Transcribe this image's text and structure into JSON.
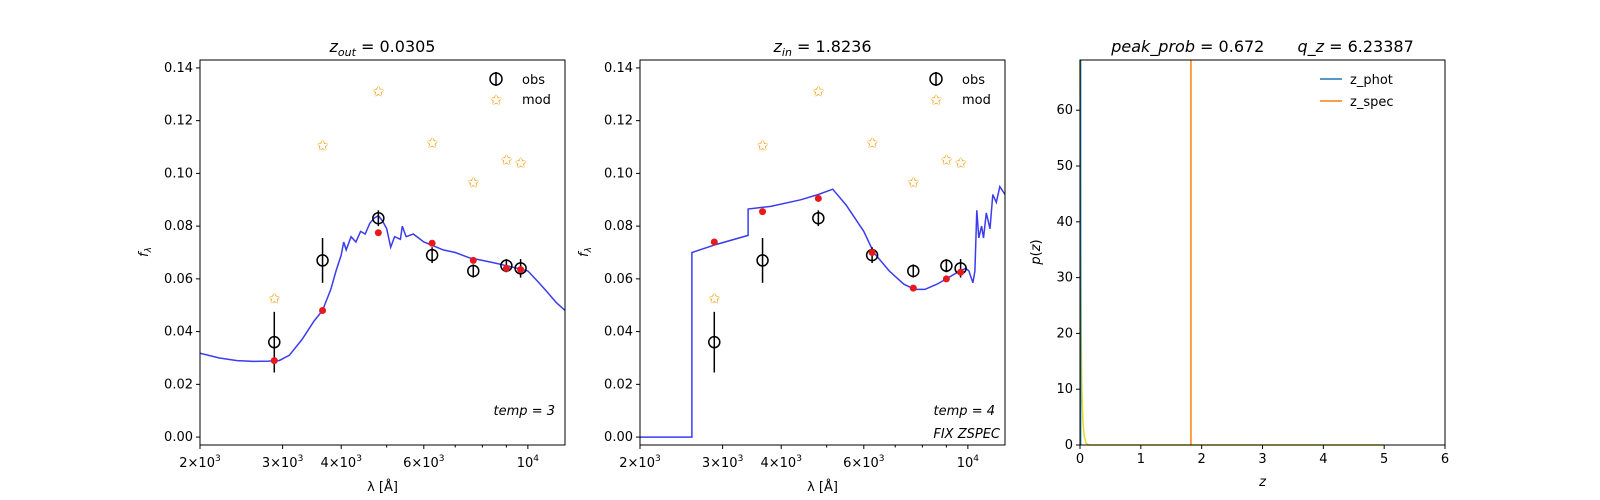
{
  "colors": {
    "model_curve": "#3b3bf0",
    "obs": "#000000",
    "mod_star": "#f5a623",
    "model_points": "#e8191d",
    "z_phot": "#1f77b4",
    "z_spec": "#ff7f0e",
    "pz_curve": "#e0e020"
  },
  "chart_data": [
    {
      "type": "scatter",
      "title": "$z_{out} = 0.0305$",
      "title_parts": {
        "sym": "z",
        "sub": "out",
        "rest": " = 0.0305"
      },
      "xlabel": "λ [Å]",
      "ylabel": "f_λ",
      "xscale": "log",
      "xlim": [
        2000,
        12000
      ],
      "ylim": [
        -0.003,
        0.143
      ],
      "xticks_major": [
        {
          "value": 2000,
          "mant": "2×10",
          "exp": "3"
        },
        {
          "value": 3000,
          "mant": "3×10",
          "exp": "3"
        },
        {
          "value": 4000,
          "mant": "4×10",
          "exp": "3"
        },
        {
          "value": 6000,
          "mant": "6×10",
          "exp": "3"
        },
        {
          "value": 10000,
          "mant": "10",
          "exp": "4"
        }
      ],
      "xticks_minor": [
        5000,
        7000,
        8000,
        9000
      ],
      "yticks": [
        "0.00",
        "0.02",
        "0.04",
        "0.06",
        "0.08",
        "0.10",
        "0.12",
        "0.14"
      ],
      "legend": {
        "position": "upper-right",
        "entries": [
          "obs",
          "mod"
        ]
      },
      "annotations": [
        {
          "text": "temp = 3"
        }
      ],
      "obs": [
        {
          "x": 2880,
          "y": 0.036,
          "err": 0.0115
        },
        {
          "x": 3650,
          "y": 0.067,
          "err": 0.0085
        },
        {
          "x": 4800,
          "y": 0.083,
          "err": 0.003
        },
        {
          "x": 6250,
          "y": 0.069,
          "err": 0.003
        },
        {
          "x": 7650,
          "y": 0.063,
          "err": 0.0025
        },
        {
          "x": 9000,
          "y": 0.065,
          "err": 0.0025
        },
        {
          "x": 9650,
          "y": 0.064,
          "err": 0.0035
        }
      ],
      "mod": [
        {
          "x": 2880,
          "y": 0.0525
        },
        {
          "x": 3650,
          "y": 0.1105
        },
        {
          "x": 4800,
          "y": 0.131
        },
        {
          "x": 6250,
          "y": 0.1115
        },
        {
          "x": 7650,
          "y": 0.0965
        },
        {
          "x": 9000,
          "y": 0.105
        },
        {
          "x": 9650,
          "y": 0.104
        }
      ],
      "model_points": [
        {
          "x": 2880,
          "y": 0.029
        },
        {
          "x": 3650,
          "y": 0.048
        },
        {
          "x": 4800,
          "y": 0.0775
        },
        {
          "x": 6250,
          "y": 0.0735
        },
        {
          "x": 7650,
          "y": 0.067
        },
        {
          "x": 9000,
          "y": 0.064
        },
        {
          "x": 9650,
          "y": 0.0635
        }
      ],
      "model_curve": [
        [
          2000,
          0.0318
        ],
        [
          2200,
          0.03
        ],
        [
          2400,
          0.029
        ],
        [
          2600,
          0.0287
        ],
        [
          2800,
          0.0288
        ],
        [
          2950,
          0.029
        ],
        [
          3100,
          0.031
        ],
        [
          3300,
          0.037
        ],
        [
          3500,
          0.044
        ],
        [
          3650,
          0.048
        ],
        [
          3800,
          0.056
        ],
        [
          3900,
          0.063
        ],
        [
          4000,
          0.069
        ],
        [
          4050,
          0.074
        ],
        [
          4100,
          0.071
        ],
        [
          4200,
          0.076
        ],
        [
          4300,
          0.074
        ],
        [
          4400,
          0.078
        ],
        [
          4500,
          0.077
        ],
        [
          4600,
          0.081
        ],
        [
          4700,
          0.083
        ],
        [
          4800,
          0.084
        ],
        [
          4900,
          0.082
        ],
        [
          5000,
          0.079
        ],
        [
          5100,
          0.072
        ],
        [
          5200,
          0.076
        ],
        [
          5350,
          0.075
        ],
        [
          5400,
          0.08
        ],
        [
          5500,
          0.076
        ],
        [
          5700,
          0.077
        ],
        [
          6000,
          0.074
        ],
        [
          6300,
          0.0725
        ],
        [
          6600,
          0.071
        ],
        [
          7000,
          0.07
        ],
        [
          7500,
          0.068
        ],
        [
          8000,
          0.067
        ],
        [
          8500,
          0.066
        ],
        [
          9000,
          0.065
        ],
        [
          9500,
          0.064
        ],
        [
          10000,
          0.063
        ],
        [
          10500,
          0.059
        ],
        [
          11000,
          0.055
        ],
        [
          11500,
          0.051
        ],
        [
          12000,
          0.048
        ]
      ]
    },
    {
      "type": "scatter",
      "title": "$z_{in} = 1.8236$",
      "title_parts": {
        "sym": "z",
        "sub": "in",
        "rest": " = 1.8236"
      },
      "xlabel": "λ [Å]",
      "ylabel": "f_λ",
      "xscale": "log",
      "xlim": [
        2000,
        12000
      ],
      "ylim": [
        -0.003,
        0.143
      ],
      "xticks_major": [
        {
          "value": 2000,
          "mant": "2×10",
          "exp": "3"
        },
        {
          "value": 3000,
          "mant": "3×10",
          "exp": "3"
        },
        {
          "value": 4000,
          "mant": "4×10",
          "exp": "3"
        },
        {
          "value": 6000,
          "mant": "6×10",
          "exp": "3"
        },
        {
          "value": 10000,
          "mant": "10",
          "exp": "4"
        }
      ],
      "xticks_minor": [
        5000,
        7000,
        8000,
        9000
      ],
      "yticks": [
        "0.00",
        "0.02",
        "0.04",
        "0.06",
        "0.08",
        "0.10",
        "0.12",
        "0.14"
      ],
      "legend": {
        "position": "upper-right",
        "entries": [
          "obs",
          "mod"
        ]
      },
      "annotations": [
        {
          "text": "temp = 4"
        },
        {
          "text": "FIX ZSPEC"
        }
      ],
      "obs": [
        {
          "x": 2880,
          "y": 0.036,
          "err": 0.0115
        },
        {
          "x": 3650,
          "y": 0.067,
          "err": 0.0085
        },
        {
          "x": 4800,
          "y": 0.083,
          "err": 0.003
        },
        {
          "x": 6250,
          "y": 0.069,
          "err": 0.003
        },
        {
          "x": 7650,
          "y": 0.063,
          "err": 0.0025
        },
        {
          "x": 9000,
          "y": 0.065,
          "err": 0.0025
        },
        {
          "x": 9650,
          "y": 0.064,
          "err": 0.0035
        }
      ],
      "mod": [
        {
          "x": 2880,
          "y": 0.0525
        },
        {
          "x": 3650,
          "y": 0.1105
        },
        {
          "x": 4800,
          "y": 0.131
        },
        {
          "x": 6250,
          "y": 0.1115
        },
        {
          "x": 7650,
          "y": 0.0965
        },
        {
          "x": 9000,
          "y": 0.105
        },
        {
          "x": 9650,
          "y": 0.104
        }
      ],
      "model_points": [
        {
          "x": 2880,
          "y": 0.074
        },
        {
          "x": 3650,
          "y": 0.0855
        },
        {
          "x": 4800,
          "y": 0.0905
        },
        {
          "x": 6250,
          "y": 0.07
        },
        {
          "x": 7650,
          "y": 0.0565
        },
        {
          "x": 9000,
          "y": 0.06
        },
        {
          "x": 9650,
          "y": 0.0625
        }
      ],
      "model_curve": [
        [
          2000,
          0.0
        ],
        [
          2580,
          0.0
        ],
        [
          2580,
          0.07
        ],
        [
          2900,
          0.073
        ],
        [
          3400,
          0.0765
        ],
        [
          3400,
          0.0865
        ],
        [
          3800,
          0.0875
        ],
        [
          4400,
          0.09
        ],
        [
          4800,
          0.092
        ],
        [
          5150,
          0.094
        ],
        [
          5500,
          0.088
        ],
        [
          6000,
          0.078
        ],
        [
          6300,
          0.07
        ],
        [
          6800,
          0.063
        ],
        [
          7300,
          0.058
        ],
        [
          7700,
          0.056
        ],
        [
          8100,
          0.056
        ],
        [
          8600,
          0.058
        ],
        [
          9000,
          0.06
        ],
        [
          9500,
          0.0625
        ],
        [
          9900,
          0.064
        ],
        [
          10050,
          0.063
        ],
        [
          10250,
          0.0585
        ],
        [
          10350,
          0.063
        ],
        [
          10450,
          0.086
        ],
        [
          10550,
          0.0755
        ],
        [
          10700,
          0.08
        ],
        [
          10800,
          0.0755
        ],
        [
          10950,
          0.085
        ],
        [
          11150,
          0.079
        ],
        [
          11300,
          0.092
        ],
        [
          11500,
          0.089
        ],
        [
          11700,
          0.095
        ],
        [
          12000,
          0.092
        ]
      ]
    },
    {
      "type": "line",
      "title": "peak_prob = 0.672      q_z = 6.23387",
      "title_parts": {
        "a_sym": "peak_prob",
        "a_rest": " = 0.672",
        "b_sym": "q_z",
        "b_rest": " = 6.23387"
      },
      "xlabel": "z",
      "ylabel": "p(z)",
      "xlim": [
        0,
        6
      ],
      "ylim": [
        0,
        69
      ],
      "xticks": [
        0,
        1,
        2,
        3,
        4,
        5,
        6
      ],
      "yticks": [
        0,
        10,
        20,
        30,
        40,
        50,
        60
      ],
      "legend": {
        "position": "upper-right",
        "entries": [
          "z_phot",
          "z_spec"
        ]
      },
      "series": [
        {
          "name": "z_phot",
          "x": [
            0.01,
            0.01
          ],
          "y": [
            0,
            69
          ]
        },
        {
          "name": "z_spec",
          "x": [
            1.8236,
            1.8236
          ],
          "y": [
            0,
            69
          ]
        }
      ],
      "pz_curve": [
        [
          0.0,
          69
        ],
        [
          0.01,
          40
        ],
        [
          0.02,
          20
        ],
        [
          0.03,
          10
        ],
        [
          0.05,
          4
        ],
        [
          0.07,
          1.5
        ],
        [
          0.1,
          0.3
        ],
        [
          0.15,
          0
        ],
        [
          5.0,
          0
        ]
      ]
    }
  ]
}
